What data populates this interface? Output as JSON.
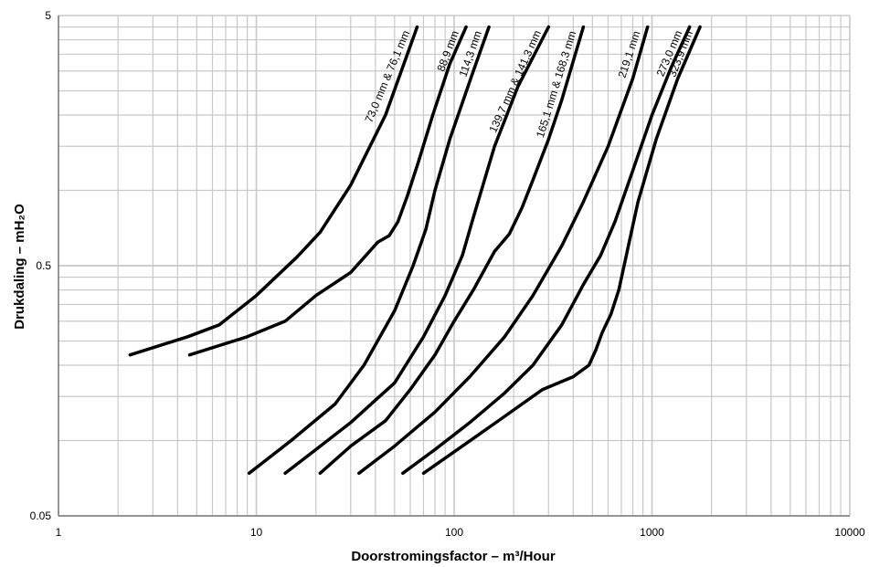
{
  "chart_data": {
    "type": "line",
    "xlabel": "Doorstromingsfactor – m³/Hour",
    "ylabel": "Drukdaling – mH₂O",
    "x_scale": "log",
    "y_scale": "log",
    "xlim": [
      1,
      10000
    ],
    "ylim": [
      0.05,
      5
    ],
    "x_ticks": [
      "1",
      "10",
      "100",
      "1000",
      "10000"
    ],
    "y_ticks": [
      "0.05",
      "0.5",
      "5"
    ],
    "grid": true,
    "line_color": "#000000",
    "grid_color": "#c8c8c8",
    "series": [
      {
        "name": "73,0 mm & 76,1 mm",
        "x": [
          2.3,
          4.5,
          6.5,
          10,
          16,
          21,
          30,
          45,
          65
        ],
        "y": [
          0.22,
          0.26,
          0.29,
          0.38,
          0.54,
          0.68,
          1.05,
          2.0,
          4.5
        ]
      },
      {
        "name": "88,9 mm",
        "x": [
          4.6,
          9,
          14,
          20,
          30,
          41,
          47,
          52,
          58,
          66,
          78,
          95,
          115
        ],
        "y": [
          0.22,
          0.26,
          0.3,
          0.38,
          0.47,
          0.62,
          0.66,
          0.75,
          0.95,
          1.3,
          2.0,
          3.2,
          4.5
        ]
      },
      {
        "name": "114,3 mm",
        "x": [
          9.2,
          15,
          25,
          35,
          50,
          62,
          72,
          80,
          95,
          125,
          150
        ],
        "y": [
          0.074,
          0.1,
          0.14,
          0.2,
          0.33,
          0.5,
          0.7,
          1.0,
          1.6,
          3.0,
          4.5
        ]
      },
      {
        "name": "139,7 mm & 141,3 mm",
        "x": [
          14,
          20,
          30,
          40,
          50,
          70,
          90,
          110,
          125,
          160,
          210,
          300
        ],
        "y": [
          0.074,
          0.092,
          0.118,
          0.145,
          0.17,
          0.26,
          0.38,
          0.55,
          0.78,
          1.5,
          2.6,
          4.5
        ]
      },
      {
        "name": "165,1 mm & 168,3 mm",
        "x": [
          21,
          30,
          45,
          60,
          80,
          100,
          125,
          160,
          190,
          220,
          250,
          300,
          350,
          450
        ],
        "y": [
          0.074,
          0.095,
          0.12,
          0.16,
          0.22,
          0.3,
          0.4,
          0.57,
          0.67,
          0.85,
          1.1,
          1.6,
          2.3,
          4.5
        ]
      },
      {
        "name": "219,1 mm",
        "x": [
          33,
          50,
          80,
          120,
          180,
          250,
          350,
          450,
          600,
          800,
          950
        ],
        "y": [
          0.074,
          0.095,
          0.13,
          0.18,
          0.26,
          0.38,
          0.6,
          0.9,
          1.5,
          2.8,
          4.5
        ]
      },
      {
        "name": "273,0 mm",
        "x": [
          55,
          80,
          120,
          180,
          250,
          350,
          450,
          550,
          650,
          800,
          1000,
          1250,
          1550
        ],
        "y": [
          0.074,
          0.092,
          0.118,
          0.155,
          0.2,
          0.29,
          0.42,
          0.55,
          0.75,
          1.2,
          2.0,
          3.1,
          4.5
        ]
      },
      {
        "name": "323,9 mm",
        "x": [
          70,
          110,
          180,
          280,
          400,
          480,
          520,
          560,
          620,
          680,
          760,
          850,
          1050,
          1350,
          1750
        ],
        "y": [
          0.074,
          0.095,
          0.125,
          0.16,
          0.18,
          0.2,
          0.23,
          0.27,
          0.32,
          0.4,
          0.6,
          0.9,
          1.6,
          2.8,
          4.5
        ]
      }
    ]
  }
}
